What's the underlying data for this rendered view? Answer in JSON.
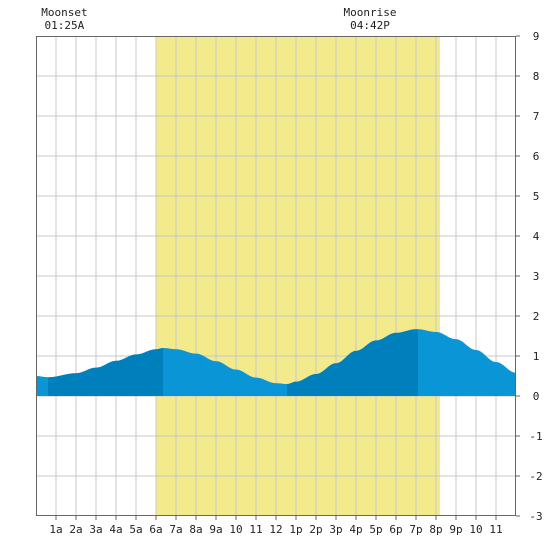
{
  "chart_data": {
    "type": "area",
    "x_unit": "hour",
    "xlim": [
      0,
      24
    ],
    "ylim": [
      -3,
      9
    ],
    "grid": true,
    "yticks": [
      -3,
      -2,
      -1,
      0,
      1,
      2,
      3,
      4,
      5,
      6,
      7,
      8,
      9
    ],
    "xtick_labels": [
      "1a",
      "2a",
      "3a",
      "4a",
      "5a",
      "6a",
      "7a",
      "8a",
      "9a",
      "10",
      "11",
      "12",
      "1p",
      "2p",
      "3p",
      "4p",
      "5p",
      "6p",
      "7p",
      "8p",
      "9p",
      "10",
      "11"
    ],
    "daylight": {
      "start_hour": 6.0,
      "end_hour": 20.2
    },
    "tide_extrema": [
      {
        "time": 0.6,
        "height": 0.47,
        "type": "low"
      },
      {
        "time": 6.35,
        "height": 1.2,
        "type": "high"
      },
      {
        "time": 12.55,
        "height": 0.3,
        "type": "low"
      },
      {
        "time": 19.1,
        "height": 1.67,
        "type": "high"
      }
    ],
    "series": [
      {
        "x": [
          0,
          0.6,
          2,
          3,
          4,
          5,
          6,
          6.35,
          7,
          8,
          9,
          10,
          11,
          12,
          12.55,
          13,
          14,
          15,
          16,
          17,
          18,
          19,
          19.1,
          20,
          21,
          22,
          23,
          24
        ],
        "values": [
          0.5,
          0.47,
          0.57,
          0.71,
          0.88,
          1.04,
          1.17,
          1.2,
          1.17,
          1.06,
          0.87,
          0.66,
          0.46,
          0.32,
          0.3,
          0.36,
          0.55,
          0.82,
          1.13,
          1.39,
          1.58,
          1.67,
          1.67,
          1.6,
          1.42,
          1.15,
          0.85,
          0.58
        ]
      }
    ],
    "colors": {
      "tide_light": "#0a96d6",
      "tide_dark": "#007fbd",
      "daylight": "#f2ea8b",
      "grid": "#c8c8c8",
      "frame": "#666666"
    }
  },
  "moon": {
    "moonset": {
      "label": "Moonset",
      "time": "01:25A",
      "hour": 1.42
    },
    "moonrise": {
      "label": "Moonrise",
      "time": "04:42P",
      "hour": 16.7
    }
  }
}
